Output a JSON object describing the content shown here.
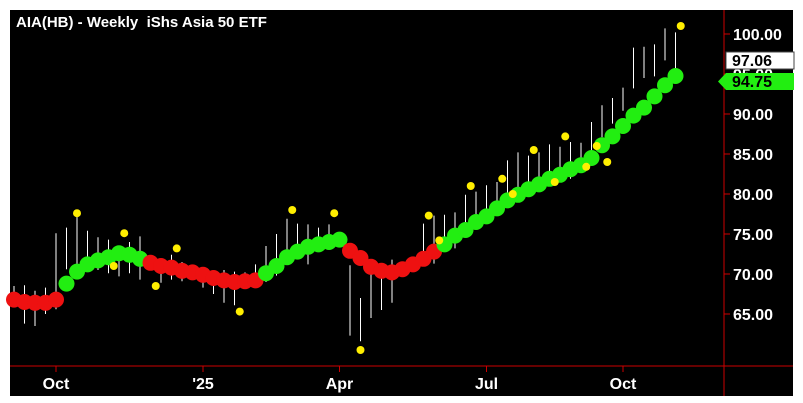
{
  "chart_data": {
    "type": "line",
    "title": "AIA(HB) - Weekly  iShs Asia 50 ETF",
    "ylim": [
      60.5,
      103
    ],
    "y_ticks": [
      "100.00",
      "95.00",
      "90.00",
      "85.00",
      "80.00",
      "75.00",
      "70.00",
      "65.00"
    ],
    "y_tick_values": [
      100,
      95,
      90,
      85,
      80,
      75,
      70,
      65
    ],
    "x_ticks": [
      "Oct",
      "'25",
      "Apr",
      "Jul",
      "Oct"
    ],
    "x_tick_weeks": [
      4,
      18,
      31,
      45,
      58
    ],
    "last_price_label": "97.06",
    "last_price": 97.06,
    "indicator_label": "94.75",
    "indicator_value": 94.75,
    "colors": {
      "background": "#000000",
      "bars": "#ffffff",
      "axis": "#cc0000",
      "rising": "#22ee11",
      "falling": "#ee1111",
      "markers": "#ffee00",
      "text": "#ffffff"
    },
    "bars": [
      [
        66.5,
        68.5
      ],
      [
        63.8,
        68.6
      ],
      [
        63.5,
        67.9
      ],
      [
        65.0,
        68.3
      ],
      [
        65.6,
        75.1
      ],
      [
        70.6,
        75.8
      ],
      [
        69.6,
        77.3
      ],
      [
        71.0,
        75.4
      ],
      [
        70.5,
        74.6
      ],
      [
        70.1,
        74.3
      ],
      [
        69.7,
        73.3
      ],
      [
        70.1,
        74.0
      ],
      [
        69.3,
        74.7
      ],
      [
        70.5,
        71.8
      ],
      [
        68.9,
        70.4
      ],
      [
        69.3,
        72.4
      ],
      [
        69.1,
        71.5
      ],
      [
        69.8,
        70.3
      ],
      [
        68.3,
        70.6
      ],
      [
        67.5,
        70.3
      ],
      [
        66.4,
        70.5
      ],
      [
        66.1,
        70.3
      ],
      [
        68.9,
        70.2
      ],
      [
        68.9,
        71.2
      ],
      [
        69.0,
        73.5
      ],
      [
        69.8,
        75.0
      ],
      [
        71.3,
        76.9
      ],
      [
        72.0,
        76.3
      ],
      [
        71.2,
        76.2
      ],
      [
        73.0,
        75.8
      ],
      [
        73.5,
        76.2
      ],
      [
        73.4,
        74.7
      ],
      [
        62.3,
        71.1
      ],
      [
        61.6,
        67.0
      ],
      [
        64.5,
        71.3
      ],
      [
        65.5,
        70.9
      ],
      [
        66.4,
        71.8
      ],
      [
        70.0,
        71.3
      ],
      [
        71.0,
        71.5
      ],
      [
        72.1,
        76.3
      ],
      [
        71.3,
        77.3
      ],
      [
        73.8,
        77.4
      ],
      [
        73.2,
        77.7
      ],
      [
        75.3,
        79.9
      ],
      [
        76.1,
        80.3
      ],
      [
        76.8,
        81.1
      ],
      [
        77.9,
        81.5
      ],
      [
        78.8,
        84.2
      ],
      [
        80.7,
        85.2
      ],
      [
        79.8,
        84.8
      ],
      [
        81.4,
        85.2
      ],
      [
        82.8,
        86.2
      ],
      [
        82.7,
        85.9
      ],
      [
        81.9,
        86.5
      ],
      [
        83.5,
        86.4
      ],
      [
        84.2,
        89.0
      ],
      [
        87.1,
        91.1
      ],
      [
        88.8,
        92.0
      ],
      [
        90.4,
        93.3
      ],
      [
        93.2,
        98.3
      ],
      [
        94.5,
        98.4
      ],
      [
        94.7,
        98.7
      ],
      [
        96.7,
        100.7
      ],
      [
        95.6,
        100.2
      ]
    ],
    "indicator": [
      {
        "v": 66.8,
        "t": "falling"
      },
      {
        "v": 66.5,
        "t": "falling"
      },
      {
        "v": 66.4,
        "t": "falling"
      },
      {
        "v": 66.4,
        "t": "falling"
      },
      {
        "v": 66.8,
        "t": "falling"
      },
      {
        "v": 68.8,
        "t": "rising"
      },
      {
        "v": 70.3,
        "t": "rising"
      },
      {
        "v": 71.2,
        "t": "rising"
      },
      {
        "v": 71.7,
        "t": "rising"
      },
      {
        "v": 72.1,
        "t": "rising"
      },
      {
        "v": 72.6,
        "t": "rising"
      },
      {
        "v": 72.4,
        "t": "rising"
      },
      {
        "v": 71.9,
        "t": "rising"
      },
      {
        "v": 71.4,
        "t": "falling"
      },
      {
        "v": 71.0,
        "t": "falling"
      },
      {
        "v": 70.8,
        "t": "falling"
      },
      {
        "v": 70.4,
        "t": "falling"
      },
      {
        "v": 70.2,
        "t": "falling"
      },
      {
        "v": 69.9,
        "t": "falling"
      },
      {
        "v": 69.5,
        "t": "falling"
      },
      {
        "v": 69.2,
        "t": "falling"
      },
      {
        "v": 69.0,
        "t": "falling"
      },
      {
        "v": 69.1,
        "t": "falling"
      },
      {
        "v": 69.2,
        "t": "falling"
      },
      {
        "v": 70.1,
        "t": "rising"
      },
      {
        "v": 71.0,
        "t": "rising"
      },
      {
        "v": 72.1,
        "t": "rising"
      },
      {
        "v": 72.8,
        "t": "rising"
      },
      {
        "v": 73.4,
        "t": "rising"
      },
      {
        "v": 73.7,
        "t": "rising"
      },
      {
        "v": 74.0,
        "t": "rising"
      },
      {
        "v": 74.3,
        "t": "rising"
      },
      {
        "v": 72.9,
        "t": "falling"
      },
      {
        "v": 72.0,
        "t": "falling"
      },
      {
        "v": 70.9,
        "t": "falling"
      },
      {
        "v": 70.4,
        "t": "falling"
      },
      {
        "v": 70.2,
        "t": "falling"
      },
      {
        "v": 70.6,
        "t": "falling"
      },
      {
        "v": 71.2,
        "t": "falling"
      },
      {
        "v": 71.9,
        "t": "falling"
      },
      {
        "v": 72.8,
        "t": "falling"
      },
      {
        "v": 73.7,
        "t": "rising"
      },
      {
        "v": 74.8,
        "t": "rising"
      },
      {
        "v": 75.5,
        "t": "rising"
      },
      {
        "v": 76.5,
        "t": "rising"
      },
      {
        "v": 77.2,
        "t": "rising"
      },
      {
        "v": 78.2,
        "t": "rising"
      },
      {
        "v": 79.2,
        "t": "rising"
      },
      {
        "v": 79.9,
        "t": "rising"
      },
      {
        "v": 80.6,
        "t": "rising"
      },
      {
        "v": 81.2,
        "t": "rising"
      },
      {
        "v": 81.9,
        "t": "rising"
      },
      {
        "v": 82.4,
        "t": "rising"
      },
      {
        "v": 83.1,
        "t": "rising"
      },
      {
        "v": 83.6,
        "t": "rising"
      },
      {
        "v": 84.5,
        "t": "rising"
      },
      {
        "v": 86.1,
        "t": "rising"
      },
      {
        "v": 87.2,
        "t": "rising"
      },
      {
        "v": 88.5,
        "t": "rising"
      },
      {
        "v": 89.8,
        "t": "rising"
      },
      {
        "v": 90.8,
        "t": "rising"
      },
      {
        "v": 92.2,
        "t": "rising"
      },
      {
        "v": 93.6,
        "t": "rising"
      },
      {
        "v": 94.75,
        "t": "rising"
      }
    ],
    "markers": [
      {
        "w": 6,
        "v": 77.6
      },
      {
        "w": 9.5,
        "v": 71.0
      },
      {
        "w": 10.5,
        "v": 75.1
      },
      {
        "w": 13.5,
        "v": 68.5
      },
      {
        "w": 15.5,
        "v": 73.2
      },
      {
        "w": 21.5,
        "v": 65.3
      },
      {
        "w": 26.5,
        "v": 78.0
      },
      {
        "w": 30.5,
        "v": 77.6
      },
      {
        "w": 33,
        "v": 60.5
      },
      {
        "w": 39.5,
        "v": 77.3
      },
      {
        "w": 40.5,
        "v": 74.2
      },
      {
        "w": 43.5,
        "v": 81.0
      },
      {
        "w": 46.5,
        "v": 81.9
      },
      {
        "w": 47.5,
        "v": 80.0
      },
      {
        "w": 49.5,
        "v": 85.5
      },
      {
        "w": 51.5,
        "v": 81.5
      },
      {
        "w": 52.5,
        "v": 87.2
      },
      {
        "w": 54.5,
        "v": 83.4
      },
      {
        "w": 55.5,
        "v": 86.0
      },
      {
        "w": 56.5,
        "v": 84.0
      },
      {
        "w": 63.5,
        "v": 101.0
      }
    ]
  }
}
